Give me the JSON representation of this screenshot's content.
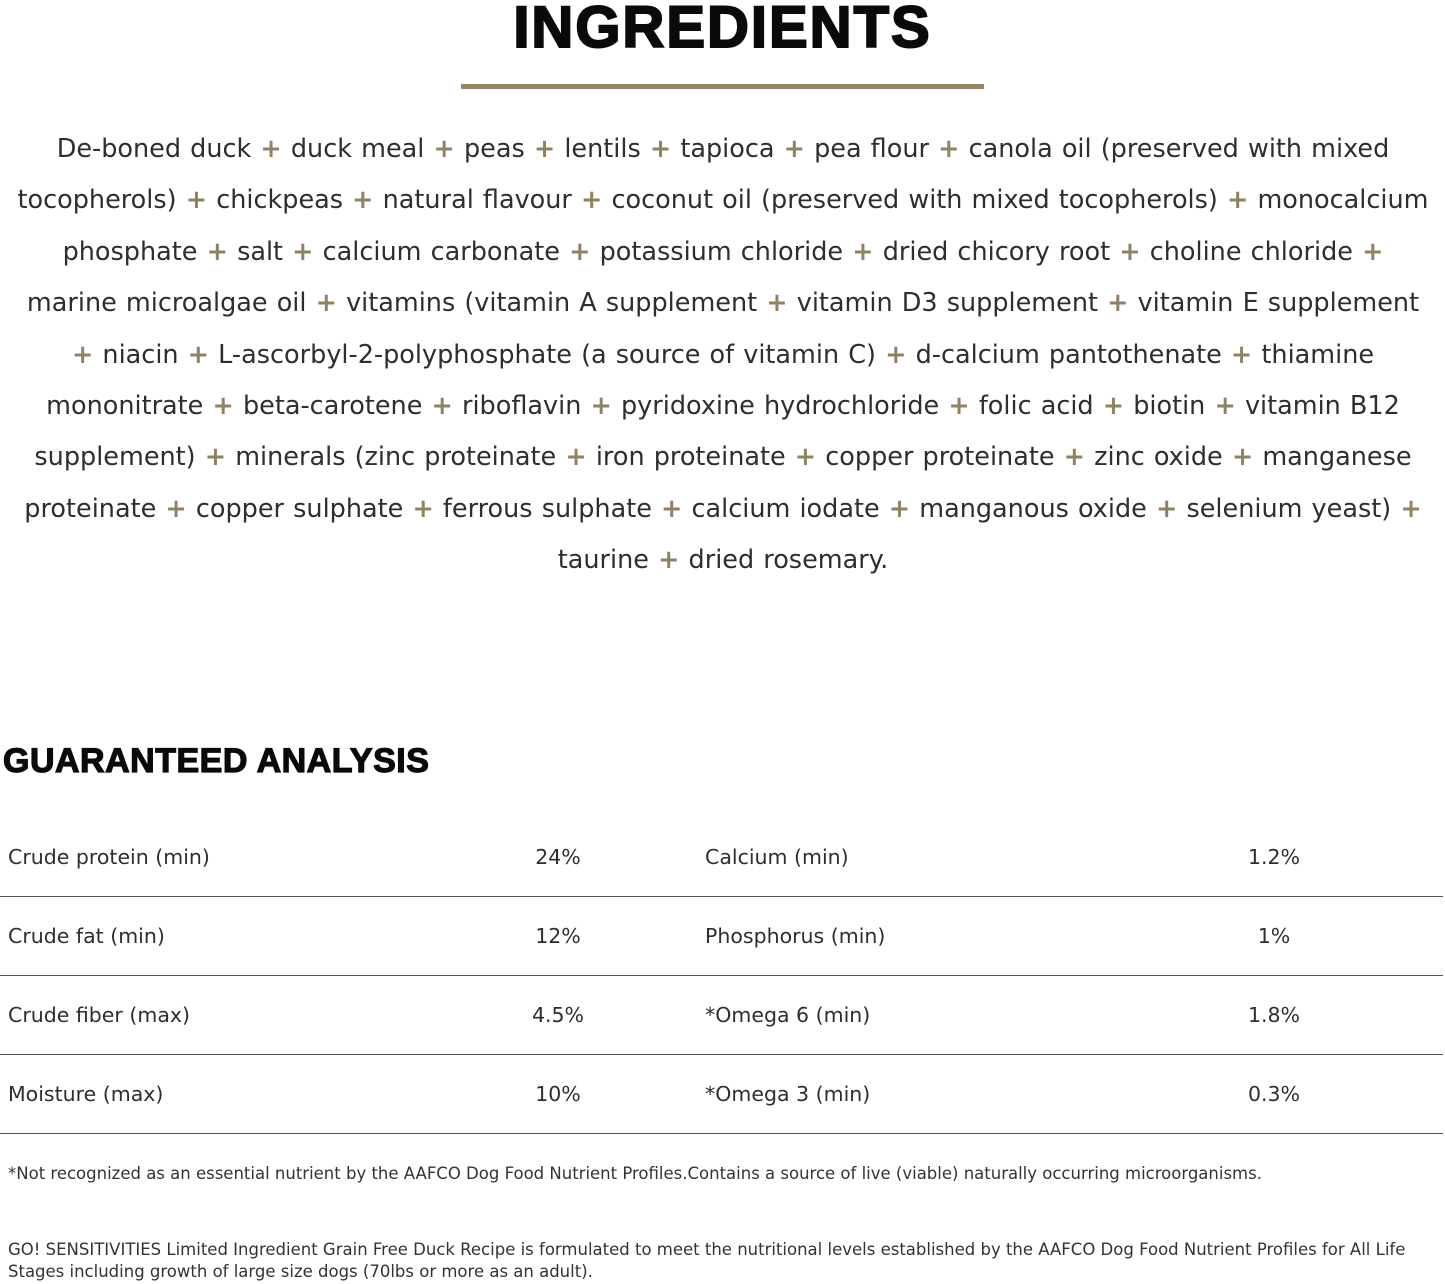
{
  "ingredients_title": "INGREDIENTS",
  "colors": {
    "accent_gold": "#958763",
    "plus_sign": "#8f8260",
    "text": "#2e2e2e"
  },
  "separator": "+",
  "ingredients": [
    "De-boned duck",
    "duck meal",
    "peas",
    "lentils",
    "tapioca",
    "pea flour",
    "canola oil (preserved with mixed tocopherols)",
    "chickpeas",
    "natural flavour",
    "coconut oil (preserved with mixed tocopherols)",
    "monocalcium phosphate",
    "salt",
    "calcium carbonate",
    "potassium chloride",
    "dried chicory root",
    "choline chloride",
    "marine microalgae oil",
    "vitamins (vitamin A supplement",
    "vitamin D3 supplement",
    "vitamin E supplement",
    "niacin",
    "L-ascorbyl-2-polyphosphate (a source of vitamin C)",
    "d-calcium pantothenate",
    "thiamine mononitrate",
    "beta-carotene",
    "riboflavin",
    "pyridoxine hydrochloride",
    "folic acid",
    "biotin",
    "vitamin B12 supplement)",
    "minerals (zinc proteinate",
    "iron proteinate",
    "copper proteinate",
    "zinc oxide",
    "manganese proteinate",
    "copper sulphate",
    "ferrous sulphate",
    "calcium iodate",
    "manganous oxide",
    "selenium yeast)",
    "taurine",
    "dried rosemary."
  ],
  "analysis": {
    "title": "GUARANTEED ANALYSIS",
    "rows": [
      {
        "left_label": "Crude protein (min)",
        "left_value": "24%",
        "right_label": "Calcium (min)",
        "right_value": "1.2%"
      },
      {
        "left_label": "Crude fat (min)",
        "left_value": "12%",
        "right_label": "Phosphorus (min)",
        "right_value": "1%"
      },
      {
        "left_label": "Crude fiber (max)",
        "left_value": "4.5%",
        "right_label": "*Omega 6 (min)",
        "right_value": "1.8%"
      },
      {
        "left_label": "Moisture (max)",
        "left_value": "10%",
        "right_label": "*Omega 3 (min)",
        "right_value": "0.3%"
      }
    ]
  },
  "footnote": "*Not recognized as an essential nutrient by the AAFCO Dog Food Nutrient Profiles.Contains a source of live (viable) naturally occurring microorganisms.",
  "statement": "GO! SENSITIVITIES Limited Ingredient Grain Free Duck Recipe is formulated to meet the nutritional levels established by the AAFCO Dog Food Nutrient Profiles for All Life Stages including growth of large size dogs (70lbs or more as an adult)."
}
